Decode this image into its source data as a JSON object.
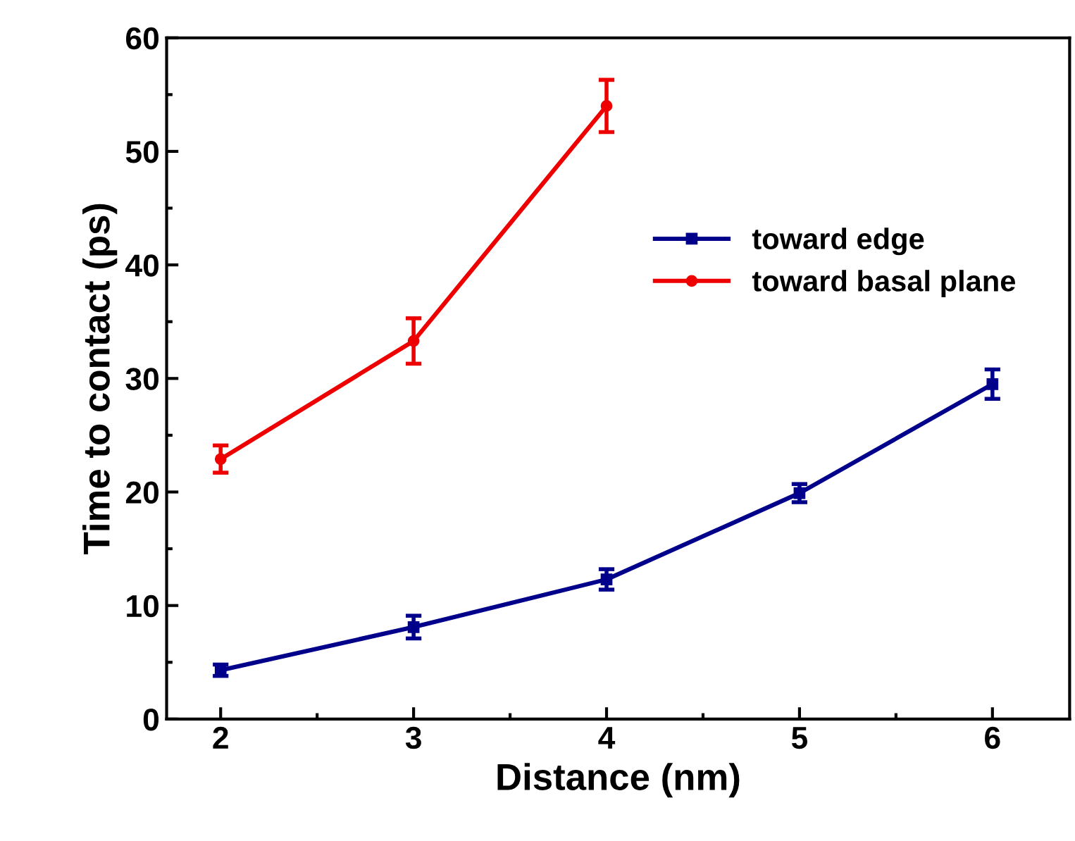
{
  "chart_data": {
    "type": "line",
    "xlabel": "Distance (nm)",
    "ylabel": "Time to contact (ps)",
    "x": [
      2,
      3,
      4,
      5,
      6
    ],
    "series": [
      {
        "name": "toward edge",
        "color": "#00008b",
        "marker": "square",
        "values": [
          4.3,
          8.1,
          12.3,
          19.9,
          29.5
        ],
        "errors": [
          0.5,
          1.0,
          0.9,
          0.8,
          1.3
        ]
      },
      {
        "name": "toward basal plane",
        "color": "#ee0000",
        "marker": "circle",
        "x": [
          2,
          3,
          4
        ],
        "values": [
          22.9,
          33.3,
          54.0
        ],
        "errors": [
          1.2,
          2.0,
          2.3
        ]
      }
    ],
    "xlim": [
      1.72,
      6.4
    ],
    "ylim": [
      0,
      60
    ],
    "xticks": [
      2,
      3,
      4,
      5,
      6
    ],
    "yticks": [
      0,
      10,
      20,
      30,
      40,
      50,
      60
    ],
    "legend": "upper right",
    "grid": false,
    "line_style": "solid"
  }
}
